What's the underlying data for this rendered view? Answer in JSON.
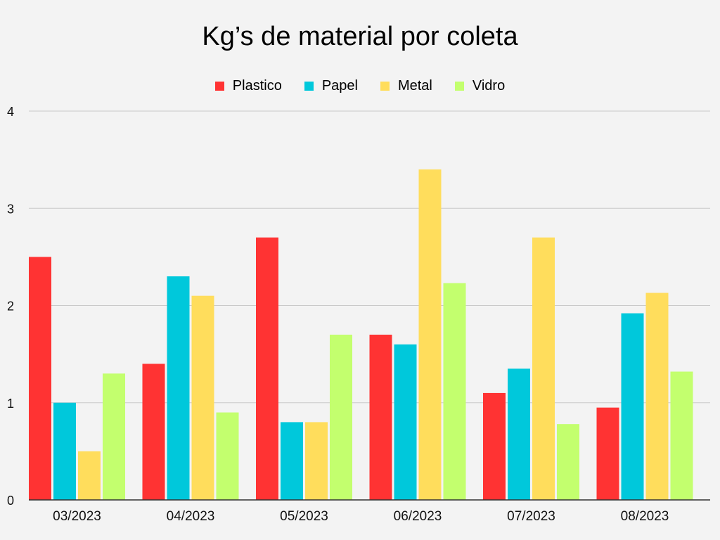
{
  "chart_data": {
    "type": "bar",
    "title": "Kg’s de material por coleta",
    "xlabel": "",
    "ylabel": "",
    "categories": [
      "03/2023",
      "04/2023",
      "05/2023",
      "06/2023",
      "07/2023",
      "08/2023"
    ],
    "series": [
      {
        "name": "Plastico",
        "color": "#ff3333",
        "values": [
          2.5,
          1.4,
          2.7,
          1.7,
          1.1,
          0.95
        ]
      },
      {
        "name": "Papel",
        "color": "#00c8db",
        "values": [
          1.0,
          2.3,
          0.8,
          1.6,
          1.35,
          1.92
        ]
      },
      {
        "name": "Metal",
        "color": "#ffdd5c",
        "values": [
          0.5,
          2.1,
          0.8,
          3.4,
          2.7,
          2.13
        ]
      },
      {
        "name": "Vidro",
        "color": "#c3ff6e",
        "values": [
          1.3,
          0.9,
          1.7,
          2.23,
          0.78,
          1.32
        ]
      }
    ],
    "ylim": [
      0,
      4
    ],
    "yticks": [
      "0",
      "1",
      "2",
      "3",
      "4"
    ],
    "grid": true,
    "legend": "top"
  }
}
